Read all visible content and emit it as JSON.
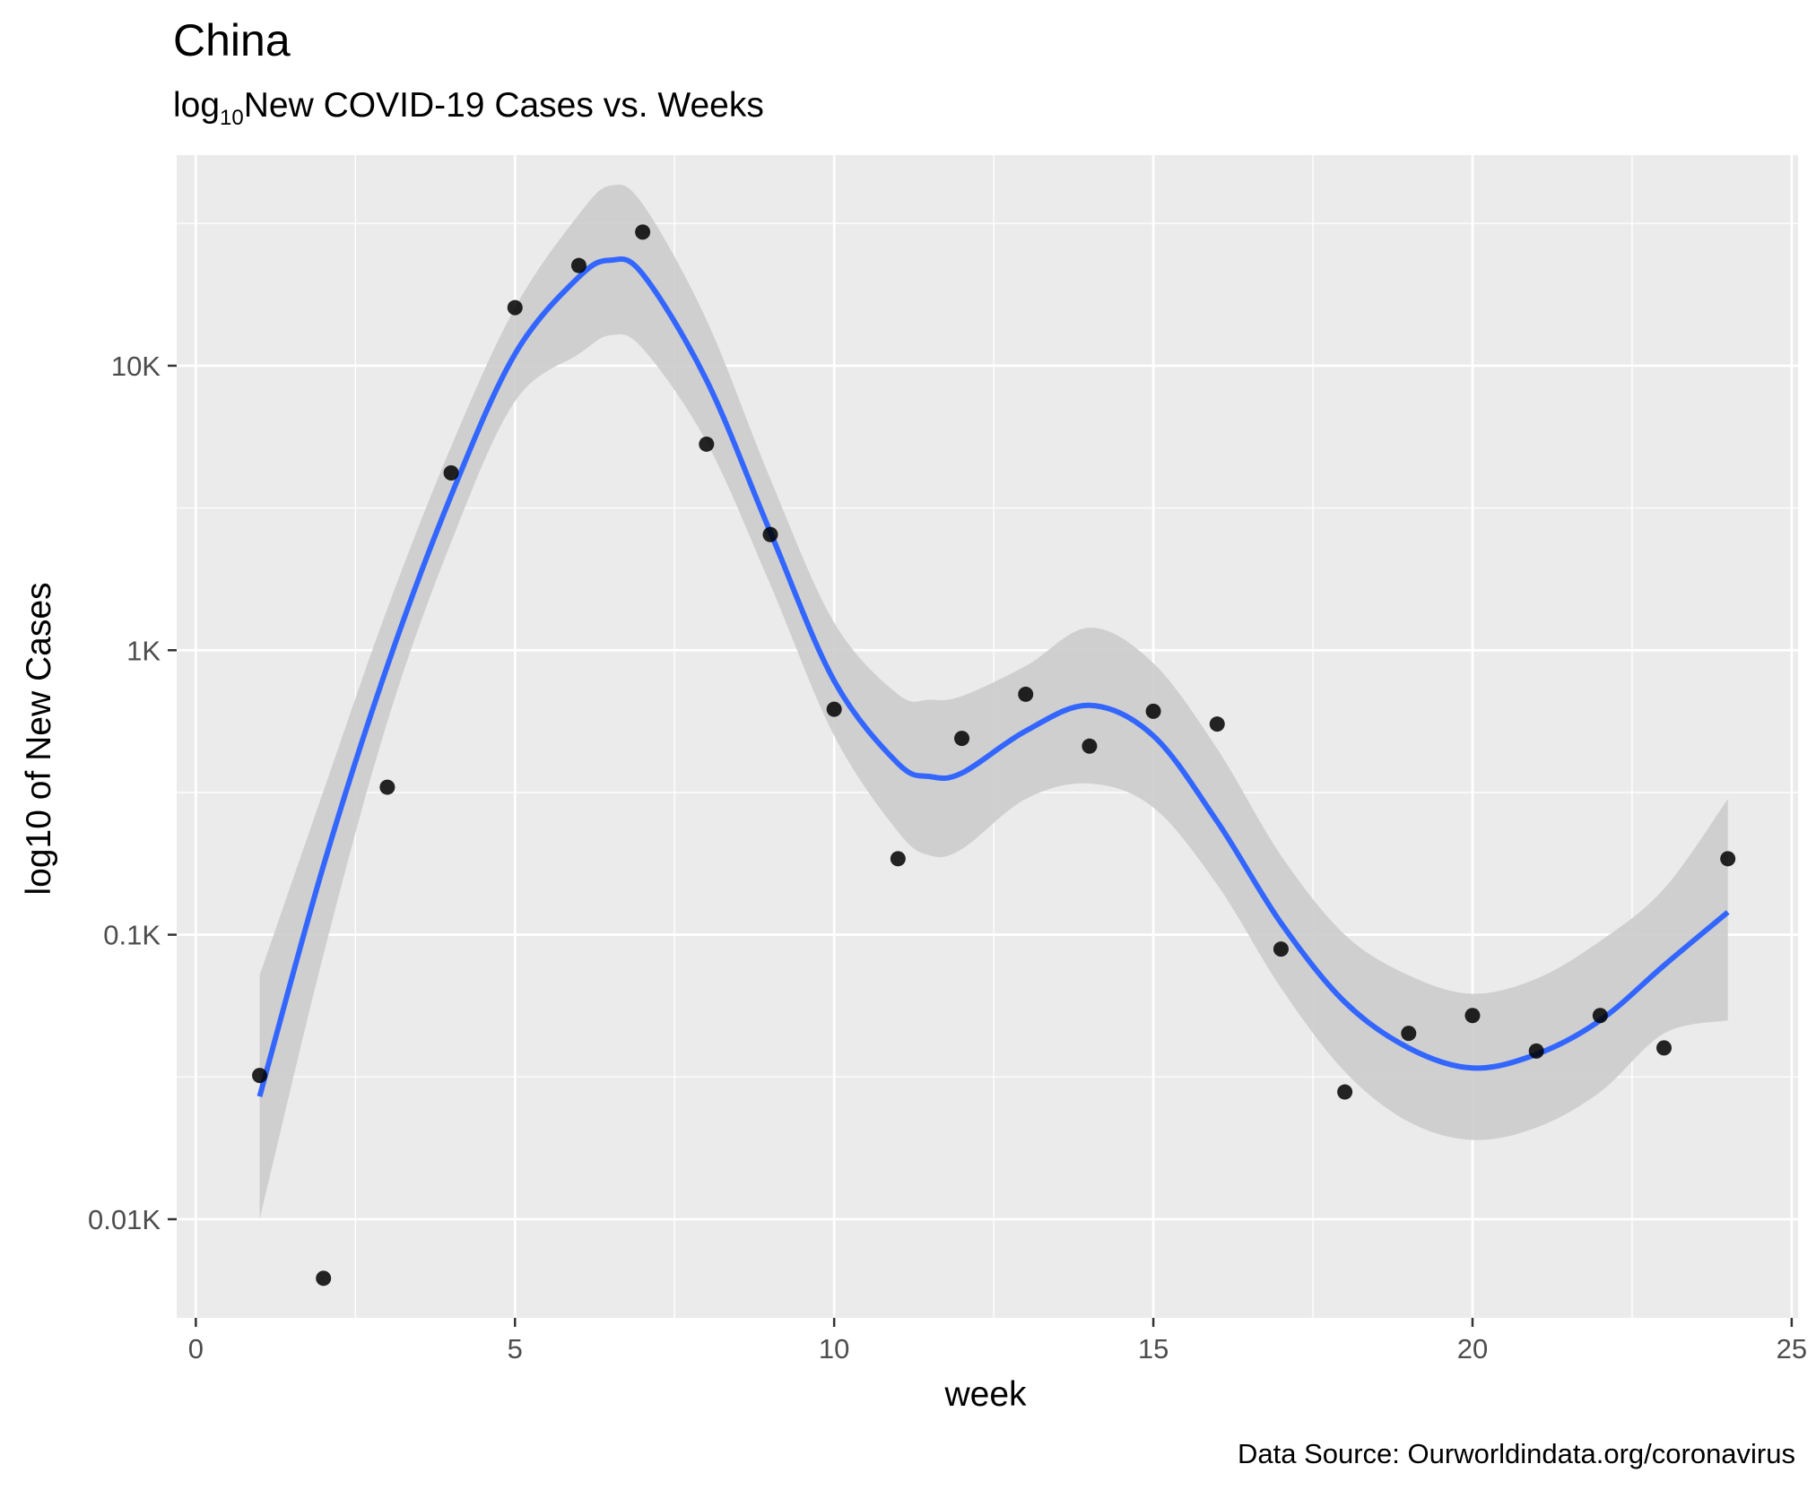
{
  "chart_data": {
    "type": "scatter",
    "title": "China",
    "subtitle": {
      "prefix": "log",
      "subscript": "10",
      "text": "New COVID-19 Cases vs. Weeks"
    },
    "xlabel": "week",
    "ylabel": "log10 of New Cases",
    "caption": "Data Source: Ourworldindata.org/coronavirus",
    "xlim": [
      -0.3,
      25.1
    ],
    "ylim": [
      4.5,
      55000
    ],
    "y_scale": "log10",
    "grid": true,
    "x_ticks": [
      {
        "value": 0,
        "label": "0"
      },
      {
        "value": 5,
        "label": "5"
      },
      {
        "value": 10,
        "label": "10"
      },
      {
        "value": 15,
        "label": "15"
      },
      {
        "value": 20,
        "label": "20"
      },
      {
        "value": 25,
        "label": "25"
      }
    ],
    "y_ticks": [
      {
        "value": 10,
        "label": "0.01K"
      },
      {
        "value": 100,
        "label": "0.1K"
      },
      {
        "value": 1000,
        "label": "1K"
      },
      {
        "value": 10000,
        "label": "10K"
      }
    ],
    "series": [
      {
        "kind": "points",
        "color": "#000000",
        "points": [
          {
            "x": 1,
            "y": 32
          },
          {
            "x": 2,
            "y": 6.2
          },
          {
            "x": 3,
            "y": 330
          },
          {
            "x": 4,
            "y": 4200
          },
          {
            "x": 5,
            "y": 16000
          },
          {
            "x": 6,
            "y": 22500
          },
          {
            "x": 7,
            "y": 29500
          },
          {
            "x": 8,
            "y": 5300
          },
          {
            "x": 9,
            "y": 2550
          },
          {
            "x": 10,
            "y": 620
          },
          {
            "x": 11,
            "y": 185
          },
          {
            "x": 12,
            "y": 490
          },
          {
            "x": 13,
            "y": 700
          },
          {
            "x": 14,
            "y": 460
          },
          {
            "x": 15,
            "y": 610
          },
          {
            "x": 16,
            "y": 550
          },
          {
            "x": 17,
            "y": 89
          },
          {
            "x": 18,
            "y": 28
          },
          {
            "x": 19,
            "y": 45
          },
          {
            "x": 20,
            "y": 52
          },
          {
            "x": 21,
            "y": 39
          },
          {
            "x": 22,
            "y": 52
          },
          {
            "x": 23,
            "y": 40
          },
          {
            "x": 24,
            "y": 185
          }
        ]
      },
      {
        "kind": "smooth",
        "color": "#3366ff",
        "band_color": "#cccccc",
        "points": [
          {
            "x": 1,
            "y": 27,
            "lo": 10,
            "hi": 72
          },
          {
            "x": 2,
            "y": 175,
            "lo": 85,
            "hi": 320
          },
          {
            "x": 3,
            "y": 880,
            "lo": 560,
            "hi": 1400
          },
          {
            "x": 4,
            "y": 3500,
            "lo": 2400,
            "hi": 5200
          },
          {
            "x": 5,
            "y": 11000,
            "lo": 7500,
            "hi": 16000
          },
          {
            "x": 6,
            "y": 20500,
            "lo": 11000,
            "hi": 34000
          },
          {
            "x": 6.5,
            "y": 23500,
            "lo": 12800,
            "hi": 43000
          },
          {
            "x": 7,
            "y": 21000,
            "lo": 11500,
            "hi": 37000
          },
          {
            "x": 8,
            "y": 8900,
            "lo": 5400,
            "hi": 14500
          },
          {
            "x": 9,
            "y": 2600,
            "lo": 1700,
            "hi": 4000
          },
          {
            "x": 10,
            "y": 780,
            "lo": 500,
            "hi": 1250
          },
          {
            "x": 11,
            "y": 400,
            "lo": 230,
            "hi": 700
          },
          {
            "x": 11.5,
            "y": 360,
            "lo": 190,
            "hi": 670
          },
          {
            "x": 12,
            "y": 370,
            "lo": 200,
            "hi": 690
          },
          {
            "x": 13,
            "y": 520,
            "lo": 300,
            "hi": 880
          },
          {
            "x": 14,
            "y": 640,
            "lo": 340,
            "hi": 1200
          },
          {
            "x": 15,
            "y": 500,
            "lo": 280,
            "hi": 900
          },
          {
            "x": 16,
            "y": 250,
            "lo": 150,
            "hi": 450
          },
          {
            "x": 17,
            "y": 110,
            "lo": 65,
            "hi": 190
          },
          {
            "x": 18,
            "y": 58,
            "lo": 33,
            "hi": 100
          },
          {
            "x": 19,
            "y": 40,
            "lo": 22,
            "hi": 72
          },
          {
            "x": 20,
            "y": 34,
            "lo": 19,
            "hi": 62
          },
          {
            "x": 21,
            "y": 38,
            "lo": 21,
            "hi": 70
          },
          {
            "x": 22,
            "y": 50,
            "lo": 28,
            "hi": 95
          },
          {
            "x": 23,
            "y": 78,
            "lo": 45,
            "hi": 145
          },
          {
            "x": 24,
            "y": 120,
            "lo": 50,
            "hi": 300
          }
        ]
      }
    ]
  }
}
